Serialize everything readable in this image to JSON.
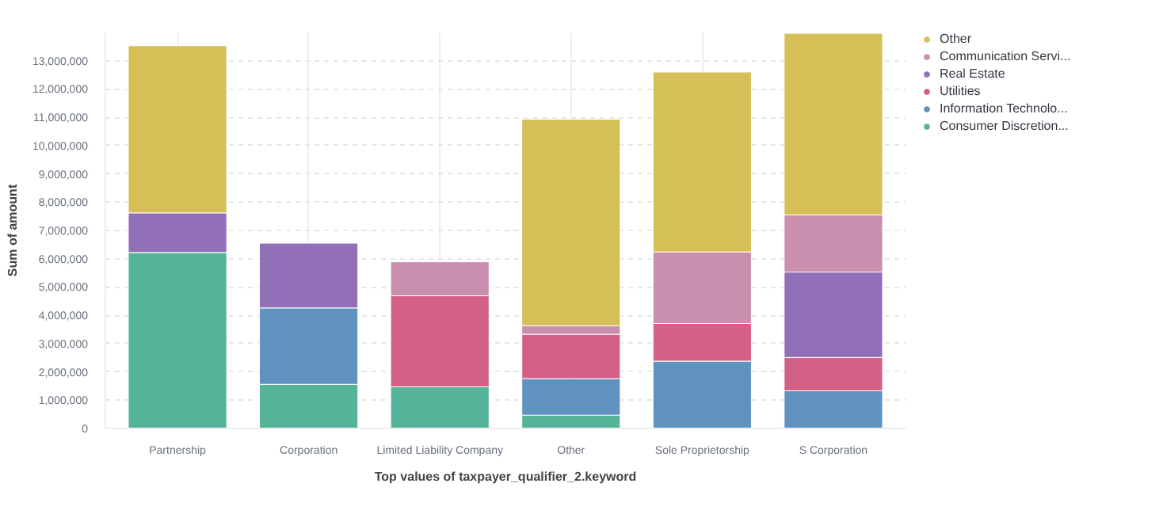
{
  "chart_data": {
    "type": "bar",
    "stacked": true,
    "xlabel": "Top values of taxpayer_qualifier_2.keyword",
    "ylabel": "Sum of amount",
    "categories": [
      "Partnership",
      "Corporation",
      "Limited Liability Company",
      "Other",
      "Sole Proprietorship",
      "S Corporation"
    ],
    "series": [
      {
        "name": "Consumer Discretion...",
        "color": "#54b399",
        "values": [
          6220000,
          1560000,
          1470000,
          470000,
          null,
          null
        ]
      },
      {
        "name": "Information Technolo...",
        "color": "#6092c0",
        "values": [
          null,
          2700000,
          null,
          1290000,
          2380000,
          1330000
        ]
      },
      {
        "name": "Utilities",
        "color": "#d36086",
        "values": [
          null,
          null,
          3220000,
          1570000,
          1330000,
          1180000
        ]
      },
      {
        "name": "Real Estate",
        "color": "#9170b8",
        "values": [
          1400000,
          2290000,
          null,
          null,
          null,
          3020000
        ]
      },
      {
        "name": "Communication Servi...",
        "color": "#ca8eae",
        "values": [
          null,
          null,
          1200000,
          300000,
          2530000,
          2020000
        ]
      },
      {
        "name": "Other",
        "color": "#d6bf57",
        "values": [
          5910000,
          null,
          null,
          7300000,
          6360000,
          6420000
        ]
      }
    ],
    "ylim": [
      0,
      14000000
    ],
    "yticks": [
      {
        "value": 0,
        "label": "0"
      },
      {
        "value": 1000000,
        "label": "1,000,000"
      },
      {
        "value": 2000000,
        "label": "2,000,000"
      },
      {
        "value": 3000000,
        "label": "3,000,000"
      },
      {
        "value": 4000000,
        "label": "4,000,000"
      },
      {
        "value": 5000000,
        "label": "5,000,000"
      },
      {
        "value": 6000000,
        "label": "6,000,000"
      },
      {
        "value": 7000000,
        "label": "7,000,000"
      },
      {
        "value": 8000000,
        "label": "8,000,000"
      },
      {
        "value": 9000000,
        "label": "9,000,000"
      },
      {
        "value": 10000000,
        "label": "10,000,000"
      },
      {
        "value": 11000000,
        "label": "11,000,000"
      },
      {
        "value": 12000000,
        "label": "12,000,000"
      },
      {
        "value": 13000000,
        "label": "13,000,000"
      }
    ],
    "grid": true,
    "legend": "top right"
  }
}
